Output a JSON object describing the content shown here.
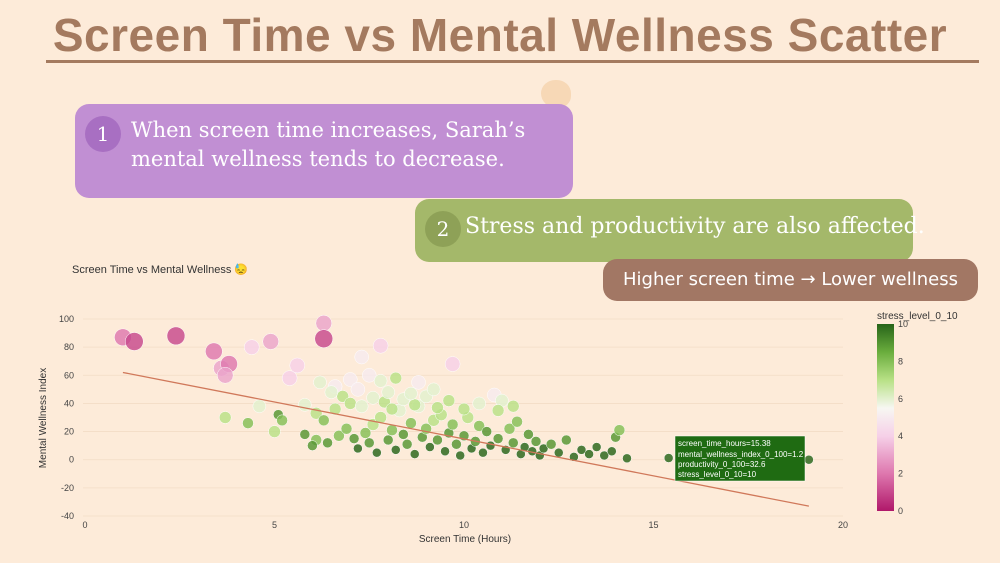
{
  "slide": {
    "title": "Screen Time vs Mental Wellness Scatter",
    "callout_1": {
      "number": "1",
      "line_1": "When screen time increases, Sarah’s",
      "line_2": "mental wellness tends to decrease."
    },
    "callout_2": {
      "number": "2",
      "text": "Stress and productivity are also affected."
    },
    "callout_3": {
      "text": "Higher screen time → Lower wellness"
    }
  },
  "colors": {
    "background": "#fdebd9",
    "title": "#a47a5f",
    "callout_1": "#c18fd3",
    "callout_2": "#a4b86a",
    "callout_3": "#a27764",
    "trendline": "#d0785a"
  },
  "chart_data": {
    "type": "scatter",
    "title": "Screen Time vs Mental Wellness 😓",
    "xlabel": "Screen Time (Hours)",
    "ylabel": "Mental Wellness Index",
    "xlim": [
      0,
      21
    ],
    "ylim": [
      -40,
      105
    ],
    "xticks": [
      0,
      5,
      10,
      15,
      20
    ],
    "yticks": [
      -40,
      -20,
      0,
      20,
      40,
      60,
      80,
      100
    ],
    "colorbar": {
      "title": "stress_level_0_10",
      "range": [
        0,
        10
      ],
      "ticks": [
        0,
        2,
        4,
        6,
        8,
        10
      ]
    },
    "trendline": {
      "x": [
        1.0,
        19.1
      ],
      "y": [
        62,
        -33
      ]
    },
    "points": [
      [
        1.0,
        87,
        2
      ],
      [
        1.3,
        84,
        1
      ],
      [
        2.4,
        88,
        1
      ],
      [
        3.4,
        77,
        2
      ],
      [
        3.6,
        65,
        3
      ],
      [
        3.8,
        68,
        2
      ],
      [
        3.7,
        60,
        3
      ],
      [
        4.4,
        80,
        4
      ],
      [
        4.9,
        84,
        3
      ],
      [
        5.4,
        58,
        4
      ],
      [
        5.6,
        67,
        4
      ],
      [
        6.3,
        97,
        3
      ],
      [
        6.3,
        86,
        1
      ],
      [
        6.6,
        52,
        5
      ],
      [
        7.0,
        57,
        5
      ],
      [
        7.3,
        73,
        5
      ],
      [
        7.5,
        60,
        5
      ],
      [
        7.8,
        81,
        4
      ],
      [
        7.8,
        56,
        6
      ],
      [
        8.2,
        58,
        7
      ],
      [
        9.7,
        68,
        4
      ],
      [
        8.8,
        55,
        5
      ],
      [
        3.7,
        30,
        7
      ],
      [
        4.3,
        26,
        8
      ],
      [
        4.6,
        38,
        6
      ],
      [
        5.0,
        20,
        7
      ],
      [
        5.1,
        32,
        9
      ],
      [
        5.2,
        28,
        8
      ],
      [
        5.8,
        39,
        6
      ],
      [
        6.1,
        33,
        7
      ],
      [
        6.3,
        28,
        8
      ],
      [
        6.6,
        36,
        7
      ],
      [
        5.8,
        18,
        9
      ],
      [
        6.1,
        14,
        8
      ],
      [
        6.0,
        10,
        9
      ],
      [
        6.4,
        12,
        9
      ],
      [
        6.7,
        17,
        8
      ],
      [
        6.9,
        22,
        8
      ],
      [
        7.1,
        15,
        9
      ],
      [
        7.2,
        8,
        10
      ],
      [
        7.4,
        19,
        8
      ],
      [
        7.5,
        12,
        9
      ],
      [
        7.6,
        25,
        7
      ],
      [
        7.7,
        5,
        10
      ],
      [
        7.8,
        30,
        7
      ],
      [
        8.0,
        14,
        9
      ],
      [
        8.1,
        21,
        8
      ],
      [
        8.2,
        7,
        10
      ],
      [
        8.3,
        35,
        6
      ],
      [
        8.4,
        18,
        9
      ],
      [
        8.5,
        11,
        9
      ],
      [
        8.6,
        26,
        8
      ],
      [
        8.7,
        4,
        10
      ],
      [
        8.8,
        38,
        6
      ],
      [
        8.9,
        16,
        9
      ],
      [
        9.0,
        22,
        8
      ],
      [
        9.1,
        9,
        10
      ],
      [
        9.2,
        28,
        7
      ],
      [
        9.3,
        14,
        9
      ],
      [
        9.4,
        32,
        7
      ],
      [
        9.5,
        6,
        10
      ],
      [
        9.6,
        19,
        9
      ],
      [
        9.7,
        25,
        8
      ],
      [
        9.8,
        11,
        9
      ],
      [
        9.9,
        3,
        10
      ],
      [
        10.0,
        17,
        9
      ],
      [
        10.1,
        30,
        7
      ],
      [
        10.2,
        8,
        10
      ],
      [
        10.3,
        13,
        9
      ],
      [
        10.4,
        24,
        8
      ],
      [
        10.5,
        5,
        10
      ],
      [
        10.6,
        20,
        9
      ],
      [
        10.7,
        10,
        10
      ],
      [
        10.8,
        46,
        5
      ],
      [
        10.9,
        15,
        9
      ],
      [
        11.0,
        42,
        6
      ],
      [
        11.1,
        7,
        10
      ],
      [
        11.2,
        22,
        8
      ],
      [
        11.3,
        12,
        9
      ],
      [
        11.4,
        27,
        8
      ],
      [
        11.5,
        4,
        10
      ],
      [
        11.6,
        9,
        10
      ],
      [
        11.7,
        18,
        9
      ],
      [
        11.8,
        6,
        10
      ],
      [
        11.9,
        13,
        9
      ],
      [
        12.0,
        3,
        10
      ],
      [
        12.1,
        8,
        10
      ],
      [
        12.3,
        11,
        9
      ],
      [
        12.5,
        5,
        10
      ],
      [
        12.7,
        14,
        9
      ],
      [
        12.9,
        2,
        10
      ],
      [
        13.1,
        7,
        10
      ],
      [
        13.3,
        4,
        10
      ],
      [
        13.5,
        9,
        10
      ],
      [
        13.7,
        3,
        10
      ],
      [
        13.9,
        6,
        10
      ],
      [
        14.0,
        16,
        9
      ],
      [
        14.1,
        21,
        8
      ],
      [
        14.3,
        1,
        10
      ],
      [
        15.4,
        1.2,
        10
      ],
      [
        19.1,
        0,
        10
      ],
      [
        6.8,
        45,
        7
      ],
      [
        7.0,
        40,
        7
      ],
      [
        7.3,
        38,
        6
      ],
      [
        7.6,
        44,
        6
      ],
      [
        7.9,
        41,
        7
      ],
      [
        8.1,
        36,
        7
      ],
      [
        8.4,
        43,
        6
      ],
      [
        8.7,
        39,
        7
      ],
      [
        9.0,
        45,
        6
      ],
      [
        9.3,
        37,
        7
      ],
      [
        9.6,
        42,
        7
      ],
      [
        10.0,
        36,
        7
      ],
      [
        10.4,
        40,
        6
      ],
      [
        10.9,
        35,
        7
      ],
      [
        11.3,
        38,
        7
      ],
      [
        6.2,
        55,
        6
      ],
      [
        6.5,
        48,
        6
      ],
      [
        7.2,
        50,
        5
      ],
      [
        8.0,
        48,
        6
      ],
      [
        8.6,
        47,
        6
      ],
      [
        9.2,
        50,
        6
      ]
    ],
    "hover": {
      "screen_time_hours": "screen_time_hours=15.38",
      "mental_wellness_index": "mental_wellness_index_0_100=1.2",
      "productivity": "productivity_0_100=32.6",
      "stress_level": "stress_level_0_10=10"
    }
  }
}
